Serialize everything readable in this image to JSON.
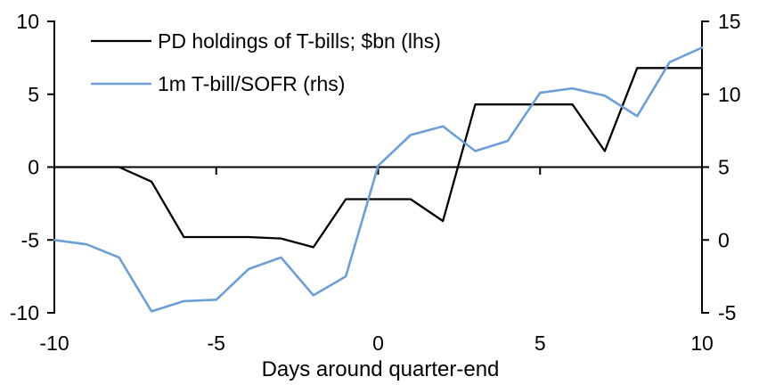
{
  "chart_data": {
    "type": "line",
    "title": "",
    "xlabel": "Days around quarter-end",
    "x": [
      -10,
      -9,
      -8,
      -7,
      -6,
      -5,
      -4,
      -3,
      -2,
      -1,
      0,
      1,
      2,
      3,
      4,
      5,
      6,
      7,
      8,
      9,
      10
    ],
    "x_ticks": [
      -10,
      -5,
      0,
      5,
      10
    ],
    "left_axis": {
      "ticks": [
        10,
        5,
        0,
        -5,
        -10
      ],
      "range": [
        -10,
        10
      ]
    },
    "right_axis": {
      "ticks": [
        15,
        10,
        5,
        0,
        -5
      ],
      "range": [
        -5,
        15
      ]
    },
    "grid": false,
    "legend_position": "top-left",
    "series": [
      {
        "name": "PD holdings of T-bills; $bn (lhs)",
        "axis": "left",
        "color": "#000000",
        "values": [
          0,
          0,
          0,
          -1,
          -4.8,
          -4.8,
          -4.8,
          -4.9,
          -5.5,
          -2.2,
          -2.2,
          -2.2,
          -3.7,
          4.3,
          4.3,
          4.3,
          4.3,
          1.1,
          6.8,
          6.8,
          6.8
        ]
      },
      {
        "name": "1m T-bill/SOFR (rhs)",
        "axis": "right",
        "color": "#6C9FD8",
        "values": [
          0,
          -0.3,
          -1.2,
          -4.9,
          -4.2,
          -4.1,
          -2.0,
          -1.2,
          -3.8,
          -2.5,
          5.1,
          7.2,
          7.8,
          6.1,
          6.8,
          10.1,
          10.4,
          9.9,
          8.5,
          12.2,
          13.2
        ]
      }
    ]
  },
  "colors": {
    "background": "#ffffff",
    "axis": "#000000",
    "text": "#000000",
    "series_black": "#000000",
    "series_blue": "#6C9FD8"
  }
}
